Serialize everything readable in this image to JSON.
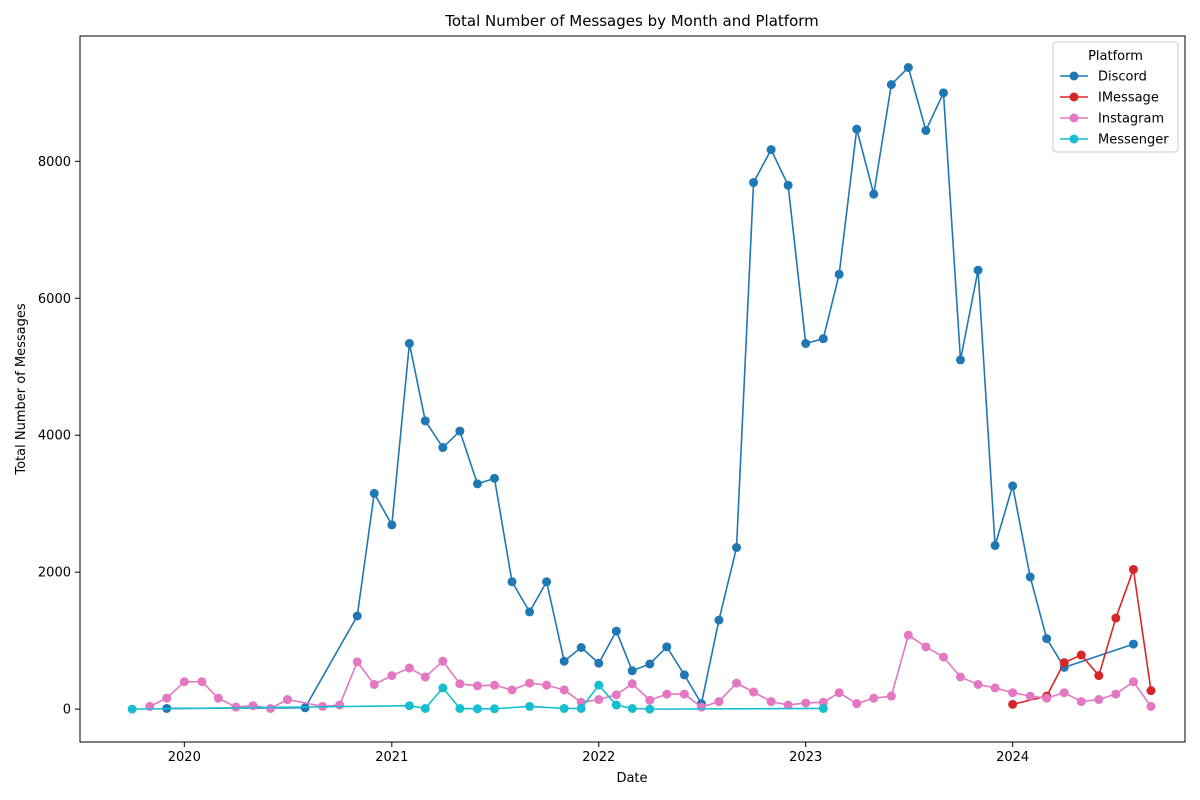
{
  "chart_data": {
    "type": "line",
    "title": "Total Number of Messages by Month and Platform",
    "xlabel": "Date",
    "ylabel": "Total Number of Messages",
    "xlim": [
      "2019-07-01",
      "2024-10-31"
    ],
    "ylim": [
      -480,
      9830
    ],
    "x_ticks": [
      "2020",
      "2021",
      "2022",
      "2023",
      "2024"
    ],
    "y_ticks": [
      0,
      2000,
      4000,
      6000,
      8000
    ],
    "grid": false,
    "markers": "circle",
    "legend": {
      "title": "Platform",
      "position": "top-right"
    },
    "series": [
      {
        "name": "Discord",
        "color": "#1f77b4",
        "points": [
          [
            "2019-12-01",
            10
          ],
          [
            "2020-08-01",
            20
          ],
          [
            "2020-11-01",
            1360
          ],
          [
            "2020-12-01",
            3150
          ],
          [
            "2021-01-01",
            2690
          ],
          [
            "2021-02-01",
            5340
          ],
          [
            "2021-03-01",
            4210
          ],
          [
            "2021-04-01",
            3820
          ],
          [
            "2021-05-01",
            4060
          ],
          [
            "2021-06-01",
            3290
          ],
          [
            "2021-07-01",
            3370
          ],
          [
            "2021-08-01",
            1860
          ],
          [
            "2021-09-01",
            1420
          ],
          [
            "2021-10-01",
            1860
          ],
          [
            "2021-11-01",
            700
          ],
          [
            "2021-12-01",
            900
          ],
          [
            "2022-01-01",
            670
          ],
          [
            "2022-02-01",
            1140
          ],
          [
            "2022-03-01",
            560
          ],
          [
            "2022-04-01",
            660
          ],
          [
            "2022-05-01",
            910
          ],
          [
            "2022-06-01",
            500
          ],
          [
            "2022-07-01",
            80
          ],
          [
            "2022-08-01",
            1300
          ],
          [
            "2022-09-01",
            2360
          ],
          [
            "2022-10-01",
            7690
          ],
          [
            "2022-11-01",
            8170
          ],
          [
            "2022-12-01",
            7650
          ],
          [
            "2023-01-01",
            5340
          ],
          [
            "2023-02-01",
            5410
          ],
          [
            "2023-03-01",
            6350
          ],
          [
            "2023-04-01",
            8470
          ],
          [
            "2023-05-01",
            7520
          ],
          [
            "2023-06-01",
            9120
          ],
          [
            "2023-07-01",
            9370
          ],
          [
            "2023-08-01",
            8450
          ],
          [
            "2023-09-01",
            9000
          ],
          [
            "2023-10-01",
            5100
          ],
          [
            "2023-11-01",
            6410
          ],
          [
            "2023-12-01",
            2390
          ],
          [
            "2024-01-01",
            3260
          ],
          [
            "2024-02-01",
            1930
          ],
          [
            "2024-03-01",
            1030
          ],
          [
            "2024-04-01",
            610
          ],
          [
            "2024-08-01",
            950
          ]
        ]
      },
      {
        "name": "IMessage",
        "color": "#d62728",
        "points": [
          [
            "2024-01-01",
            70
          ],
          [
            "2024-03-01",
            190
          ],
          [
            "2024-04-01",
            680
          ],
          [
            "2024-05-01",
            790
          ],
          [
            "2024-06-01",
            490
          ],
          [
            "2024-07-01",
            1330
          ],
          [
            "2024-08-01",
            2040
          ],
          [
            "2024-09-01",
            270
          ]
        ]
      },
      {
        "name": "Instagram",
        "color": "#e377c2",
        "points": [
          [
            "2019-11-01",
            40
          ],
          [
            "2019-12-01",
            160
          ],
          [
            "2020-01-01",
            400
          ],
          [
            "2020-02-01",
            400
          ],
          [
            "2020-03-01",
            160
          ],
          [
            "2020-04-01",
            30
          ],
          [
            "2020-05-01",
            50
          ],
          [
            "2020-06-01",
            10
          ],
          [
            "2020-07-01",
            140
          ],
          [
            "2020-09-01",
            40
          ],
          [
            "2020-10-01",
            60
          ],
          [
            "2020-11-01",
            690
          ],
          [
            "2020-12-01",
            360
          ],
          [
            "2021-01-01",
            490
          ],
          [
            "2021-02-01",
            600
          ],
          [
            "2021-03-01",
            470
          ],
          [
            "2021-04-01",
            700
          ],
          [
            "2021-05-01",
            370
          ],
          [
            "2021-06-01",
            340
          ],
          [
            "2021-07-01",
            350
          ],
          [
            "2021-08-01",
            280
          ],
          [
            "2021-09-01",
            380
          ],
          [
            "2021-10-01",
            350
          ],
          [
            "2021-11-01",
            280
          ],
          [
            "2021-12-01",
            100
          ],
          [
            "2022-01-01",
            140
          ],
          [
            "2022-02-01",
            210
          ],
          [
            "2022-03-01",
            370
          ],
          [
            "2022-04-01",
            130
          ],
          [
            "2022-05-01",
            220
          ],
          [
            "2022-06-01",
            220
          ],
          [
            "2022-07-01",
            30
          ],
          [
            "2022-08-01",
            110
          ],
          [
            "2022-09-01",
            380
          ],
          [
            "2022-10-01",
            250
          ],
          [
            "2022-11-01",
            110
          ],
          [
            "2022-12-01",
            60
          ],
          [
            "2023-01-01",
            90
          ],
          [
            "2023-02-01",
            100
          ],
          [
            "2023-03-01",
            240
          ],
          [
            "2023-04-01",
            80
          ],
          [
            "2023-05-01",
            160
          ],
          [
            "2023-06-01",
            190
          ],
          [
            "2023-07-01",
            1080
          ],
          [
            "2023-08-01",
            910
          ],
          [
            "2023-09-01",
            760
          ],
          [
            "2023-10-01",
            470
          ],
          [
            "2023-11-01",
            360
          ],
          [
            "2023-12-01",
            310
          ],
          [
            "2024-01-01",
            240
          ],
          [
            "2024-02-01",
            190
          ],
          [
            "2024-03-01",
            160
          ],
          [
            "2024-04-01",
            240
          ],
          [
            "2024-05-01",
            110
          ],
          [
            "2024-06-01",
            140
          ],
          [
            "2024-07-01",
            220
          ],
          [
            "2024-08-01",
            400
          ],
          [
            "2024-09-01",
            40
          ]
        ]
      },
      {
        "name": "Messenger",
        "color": "#17becf",
        "points": [
          [
            "2019-10-01",
            0
          ],
          [
            "2021-02-01",
            50
          ],
          [
            "2021-03-01",
            10
          ],
          [
            "2021-04-01",
            310
          ],
          [
            "2021-05-01",
            10
          ],
          [
            "2021-06-01",
            5
          ],
          [
            "2021-07-01",
            5
          ],
          [
            "2021-09-01",
            40
          ],
          [
            "2021-11-01",
            10
          ],
          [
            "2021-12-01",
            10
          ],
          [
            "2022-01-01",
            350
          ],
          [
            "2022-02-01",
            60
          ],
          [
            "2022-03-01",
            10
          ],
          [
            "2022-04-01",
            0
          ],
          [
            "2023-02-01",
            10
          ]
        ]
      }
    ]
  }
}
